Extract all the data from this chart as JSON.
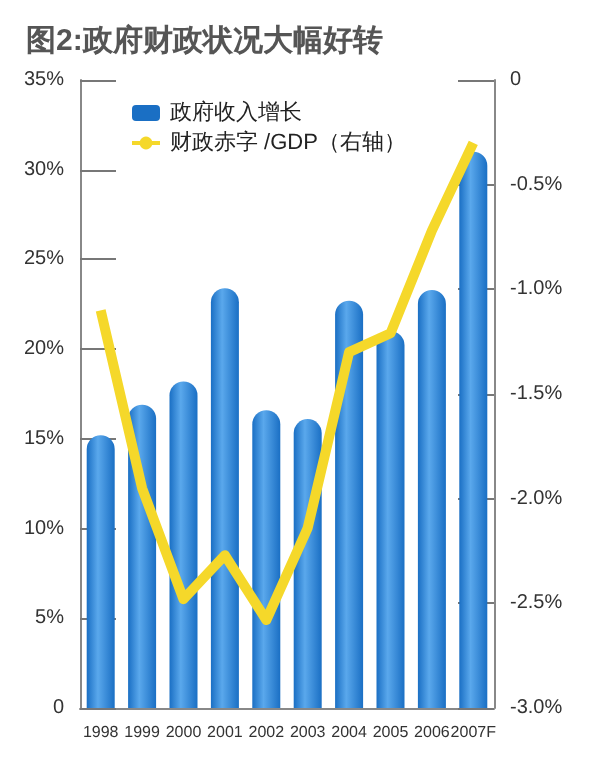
{
  "chart_data": {
    "type": "bar",
    "title": "图2:政府财政状况大幅好转",
    "categories": [
      "1998",
      "1999",
      "2000",
      "2001",
      "2002",
      "2003",
      "2004",
      "2005",
      "2006",
      "2007F"
    ],
    "series": [
      {
        "name": "政府收入增长",
        "color": "#1a6fc4",
        "values": [
          15.2,
          16.9,
          18.2,
          23.4,
          16.6,
          16.1,
          22.7,
          21,
          23.3,
          31
        ]
      },
      {
        "name": "财政赤字 /GDP（右轴）",
        "type": "line",
        "axis": "y2",
        "color": "#f5d82a",
        "values": [
          -1.1,
          -1.95,
          -2.48,
          -2.27,
          -2.58,
          -2.14,
          -1.3,
          -1.21,
          -0.72,
          -0.3
        ]
      }
    ],
    "ylim": [
      0,
      35
    ],
    "yticks": [
      0,
      {
        "value": 5,
        "label": "5%"
      },
      {
        "value": 10,
        "label": "10%"
      },
      {
        "value": 15,
        "label": "15%"
      },
      {
        "value": 20,
        "label": "20%"
      },
      {
        "value": 25,
        "label": "25%"
      },
      {
        "value": 30,
        "label": "30%"
      },
      {
        "value": 35,
        "label": "35%"
      }
    ],
    "y2lim": [
      -3,
      0
    ],
    "y2ticks": [
      {
        "value": -3,
        "label": "-3.0%"
      },
      {
        "value": -2.5,
        "label": "-2.5%"
      },
      {
        "value": -2,
        "label": "-2.0%"
      },
      {
        "value": -1.5,
        "label": "-1.5%"
      },
      {
        "value": -1,
        "label": "-1.0%"
      },
      {
        "value": -0.5,
        "label": "-0.5%"
      },
      0
    ],
    "legend": "top left",
    "marker": "none",
    "grid": false
  }
}
